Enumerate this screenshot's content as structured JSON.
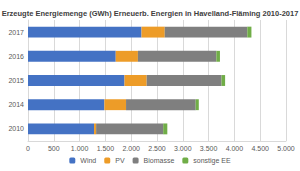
{
  "chart_data": {
    "type": "bar",
    "title": "Erzeugte Energiemenge (GWh) Erneuerb. Energien in Havelland-Fläming 2010-2017",
    "orientation": "horizontal",
    "stacked": true,
    "grid": true,
    "legend": "bottom",
    "categories": [
      "2010",
      "2014",
      "2015",
      "2016",
      "2017"
    ],
    "series": [
      {
        "name": "Wind",
        "color": "#4472c4",
        "values": [
          1280,
          1480,
          1870,
          1700,
          2200
        ]
      },
      {
        "name": "PV",
        "color": "#ed9c28",
        "values": [
          40,
          420,
          430,
          430,
          450
        ]
      },
      {
        "name": "Biomasse",
        "color": "#7f7f7f",
        "values": [
          1300,
          1350,
          1450,
          1520,
          1600
        ]
      },
      {
        "name": "sonstige EE",
        "color": "#70ad47",
        "values": [
          80,
          60,
          70,
          70,
          80
        ]
      }
    ],
    "xlim": [
      0,
      5000
    ],
    "xticks": [
      0,
      500,
      {
        "value": 1000,
        "label": "1.000"
      },
      {
        "value": 1500,
        "label": "1.500"
      },
      {
        "value": 2000,
        "label": "2.000"
      },
      {
        "value": 2500,
        "label": "2.500"
      },
      {
        "value": 3000,
        "label": "3.000"
      },
      {
        "value": 3500,
        "label": "3.500"
      },
      {
        "value": 4000,
        "label": "4.000"
      },
      {
        "value": 4500,
        "label": "4.500"
      },
      {
        "value": 5000,
        "label": "5.000"
      }
    ]
  }
}
